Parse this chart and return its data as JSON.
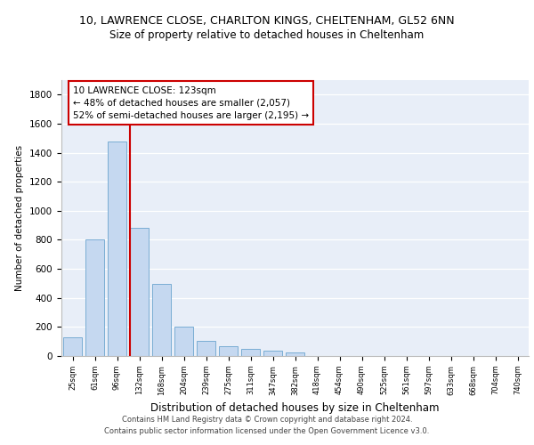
{
  "title_line1": "10, LAWRENCE CLOSE, CHARLTON KINGS, CHELTENHAM, GL52 6NN",
  "title_line2": "Size of property relative to detached houses in Cheltenham",
  "xlabel": "Distribution of detached houses by size in Cheltenham",
  "ylabel": "Number of detached properties",
  "categories": [
    "25sqm",
    "61sqm",
    "96sqm",
    "132sqm",
    "168sqm",
    "204sqm",
    "239sqm",
    "275sqm",
    "311sqm",
    "347sqm",
    "382sqm",
    "418sqm",
    "454sqm",
    "490sqm",
    "525sqm",
    "561sqm",
    "597sqm",
    "633sqm",
    "668sqm",
    "704sqm",
    "740sqm"
  ],
  "values": [
    130,
    800,
    1480,
    880,
    495,
    205,
    105,
    65,
    48,
    35,
    25,
    0,
    0,
    0,
    0,
    0,
    0,
    0,
    0,
    0,
    0
  ],
  "bar_color": "#c5d8f0",
  "bar_edge_color": "#7aadd4",
  "vline_color": "#cc0000",
  "annotation_text": "10 LAWRENCE CLOSE: 123sqm\n← 48% of detached houses are smaller (2,057)\n52% of semi-detached houses are larger (2,195) →",
  "annotation_box_color": "#ffffff",
  "annotation_box_edge_color": "#cc0000",
  "ylim": [
    0,
    1900
  ],
  "yticks": [
    0,
    200,
    400,
    600,
    800,
    1000,
    1200,
    1400,
    1600,
    1800
  ],
  "background_color": "#e8eef8",
  "grid_color": "#ffffff",
  "footer_line1": "Contains HM Land Registry data © Crown copyright and database right 2024.",
  "footer_line2": "Contains public sector information licensed under the Open Government Licence v3.0."
}
